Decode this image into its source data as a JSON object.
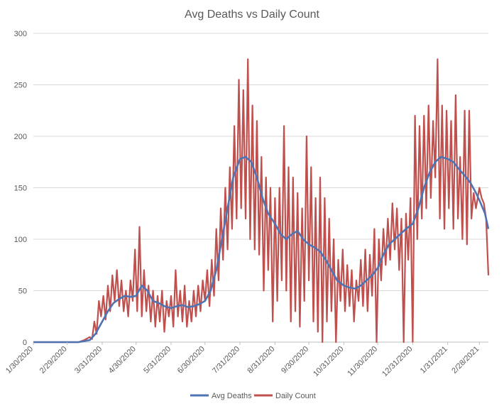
{
  "chart_data": {
    "type": "line",
    "title": "Avg Deaths vs Daily Count",
    "xlabel": "",
    "ylabel": "",
    "ylim": [
      0,
      300
    ],
    "y_ticks": [
      0,
      50,
      100,
      150,
      200,
      250,
      300
    ],
    "x_tick_labels": [
      "1/30/2020",
      "2/29/2020",
      "3/31/2020",
      "4/30/2020",
      "5/31/2020",
      "6/30/2020",
      "7/31/2020",
      "8/31/2020",
      "9/30/2020",
      "10/31/2020",
      "11/30/2020",
      "12/31/2020",
      "1/31/2021",
      "2/28/2021"
    ],
    "grid": "horizontal",
    "legend_position": "bottom",
    "series": [
      {
        "name": "Avg Deaths",
        "color": "#4f74b3",
        "points": [
          [
            "1/30/2020",
            0
          ],
          [
            "3/10/2020",
            0
          ],
          [
            "3/20/2020",
            2
          ],
          [
            "3/25/2020",
            8
          ],
          [
            "3/31/2020",
            20
          ],
          [
            "4/5/2020",
            30
          ],
          [
            "4/10/2020",
            38
          ],
          [
            "4/15/2020",
            42
          ],
          [
            "4/20/2020",
            45
          ],
          [
            "4/25/2020",
            44
          ],
          [
            "4/30/2020",
            45
          ],
          [
            "5/5/2020",
            55
          ],
          [
            "5/10/2020",
            50
          ],
          [
            "5/15/2020",
            40
          ],
          [
            "5/20/2020",
            38
          ],
          [
            "5/25/2020",
            35
          ],
          [
            "5/31/2020",
            33
          ],
          [
            "6/5/2020",
            35
          ],
          [
            "6/10/2020",
            36
          ],
          [
            "6/15/2020",
            34
          ],
          [
            "6/20/2020",
            35
          ],
          [
            "6/25/2020",
            37
          ],
          [
            "6/30/2020",
            40
          ],
          [
            "7/5/2020",
            50
          ],
          [
            "7/10/2020",
            70
          ],
          [
            "7/15/2020",
            100
          ],
          [
            "7/20/2020",
            130
          ],
          [
            "7/25/2020",
            160
          ],
          [
            "7/31/2020",
            178
          ],
          [
            "8/5/2020",
            180
          ],
          [
            "8/10/2020",
            175
          ],
          [
            "8/15/2020",
            160
          ],
          [
            "8/20/2020",
            140
          ],
          [
            "8/25/2020",
            125
          ],
          [
            "8/31/2020",
            115
          ],
          [
            "9/5/2020",
            105
          ],
          [
            "9/10/2020",
            100
          ],
          [
            "9/15/2020",
            105
          ],
          [
            "9/20/2020",
            108
          ],
          [
            "9/25/2020",
            100
          ],
          [
            "9/30/2020",
            95
          ],
          [
            "10/5/2020",
            92
          ],
          [
            "10/10/2020",
            88
          ],
          [
            "10/15/2020",
            80
          ],
          [
            "10/20/2020",
            70
          ],
          [
            "10/25/2020",
            60
          ],
          [
            "10/31/2020",
            55
          ],
          [
            "11/5/2020",
            53
          ],
          [
            "11/10/2020",
            52
          ],
          [
            "11/15/2020",
            55
          ],
          [
            "11/20/2020",
            60
          ],
          [
            "11/25/2020",
            65
          ],
          [
            "11/30/2020",
            72
          ],
          [
            "12/5/2020",
            85
          ],
          [
            "12/10/2020",
            95
          ],
          [
            "12/15/2020",
            100
          ],
          [
            "12/20/2020",
            105
          ],
          [
            "12/25/2020",
            110
          ],
          [
            "12/31/2020",
            115
          ],
          [
            "1/5/2021",
            130
          ],
          [
            "1/10/2021",
            150
          ],
          [
            "1/15/2021",
            165
          ],
          [
            "1/20/2021",
            175
          ],
          [
            "1/25/2021",
            180
          ],
          [
            "1/31/2021",
            178
          ],
          [
            "2/5/2021",
            175
          ],
          [
            "2/10/2021",
            168
          ],
          [
            "2/15/2021",
            162
          ],
          [
            "2/20/2021",
            155
          ],
          [
            "2/25/2021",
            145
          ],
          [
            "2/28/2021",
            138
          ],
          [
            "3/5/2021",
            125
          ],
          [
            "3/8/2021",
            110
          ]
        ]
      },
      {
        "name": "Daily Count",
        "color": "#c0504d",
        "points": [
          [
            "1/30/2020",
            0
          ],
          [
            "3/10/2020",
            0
          ],
          [
            "3/15/2020",
            2
          ],
          [
            "3/20/2020",
            5
          ],
          [
            "3/22/2020",
            3
          ],
          [
            "3/24/2020",
            20
          ],
          [
            "3/26/2020",
            8
          ],
          [
            "3/28/2020",
            40
          ],
          [
            "3/30/2020",
            25
          ],
          [
            "4/1/2020",
            45
          ],
          [
            "4/3/2020",
            22
          ],
          [
            "4/5/2020",
            55
          ],
          [
            "4/7/2020",
            30
          ],
          [
            "4/9/2020",
            65
          ],
          [
            "4/11/2020",
            40
          ],
          [
            "4/13/2020",
            70
          ],
          [
            "4/15/2020",
            35
          ],
          [
            "4/17/2020",
            60
          ],
          [
            "4/19/2020",
            30
          ],
          [
            "4/21/2020",
            50
          ],
          [
            "4/23/2020",
            25
          ],
          [
            "4/25/2020",
            60
          ],
          [
            "4/27/2020",
            40
          ],
          [
            "4/29/2020",
            90
          ],
          [
            "5/1/2020",
            30
          ],
          [
            "5/3/2020",
            112
          ],
          [
            "5/5/2020",
            25
          ],
          [
            "5/7/2020",
            70
          ],
          [
            "5/9/2020",
            30
          ],
          [
            "5/11/2020",
            55
          ],
          [
            "5/13/2020",
            20
          ],
          [
            "5/15/2020",
            50
          ],
          [
            "5/17/2020",
            15
          ],
          [
            "5/19/2020",
            45
          ],
          [
            "5/21/2020",
            20
          ],
          [
            "5/23/2020",
            50
          ],
          [
            "5/25/2020",
            10
          ],
          [
            "5/27/2020",
            40
          ],
          [
            "5/29/2020",
            25
          ],
          [
            "5/31/2020",
            45
          ],
          [
            "6/2/2020",
            15
          ],
          [
            "6/4/2020",
            70
          ],
          [
            "6/6/2020",
            25
          ],
          [
            "6/8/2020",
            50
          ],
          [
            "6/10/2020",
            20
          ],
          [
            "6/12/2020",
            55
          ],
          [
            "6/14/2020",
            15
          ],
          [
            "6/16/2020",
            40
          ],
          [
            "6/18/2020",
            20
          ],
          [
            "6/20/2020",
            50
          ],
          [
            "6/22/2020",
            25
          ],
          [
            "6/24/2020",
            55
          ],
          [
            "6/26/2020",
            30
          ],
          [
            "6/28/2020",
            60
          ],
          [
            "6/30/2020",
            40
          ],
          [
            "7/2/2020",
            70
          ],
          [
            "7/4/2020",
            35
          ],
          [
            "7/6/2020",
            80
          ],
          [
            "7/8/2020",
            45
          ],
          [
            "7/10/2020",
            110
          ],
          [
            "7/12/2020",
            60
          ],
          [
            "7/14/2020",
            130
          ],
          [
            "7/16/2020",
            80
          ],
          [
            "7/18/2020",
            150
          ],
          [
            "7/20/2020",
            90
          ],
          [
            "7/22/2020",
            170
          ],
          [
            "7/24/2020",
            110
          ],
          [
            "7/26/2020",
            210
          ],
          [
            "7/28/2020",
            120
          ],
          [
            "7/30/2020",
            255
          ],
          [
            "8/1/2020",
            130
          ],
          [
            "8/3/2020",
            245
          ],
          [
            "8/5/2020",
            120
          ],
          [
            "8/7/2020",
            275
          ],
          [
            "8/9/2020",
            100
          ],
          [
            "8/11/2020",
            230
          ],
          [
            "8/13/2020",
            90
          ],
          [
            "8/15/2020",
            215
          ],
          [
            "8/17/2020",
            85
          ],
          [
            "8/19/2020",
            180
          ],
          [
            "8/21/2020",
            50
          ],
          [
            "8/23/2020",
            160
          ],
          [
            "8/25/2020",
            70
          ],
          [
            "8/27/2020",
            150
          ],
          [
            "8/29/2020",
            20
          ],
          [
            "8/31/2020",
            140
          ],
          [
            "9/2/2020",
            40
          ],
          [
            "9/4/2020",
            150
          ],
          [
            "9/6/2020",
            60
          ],
          [
            "9/8/2020",
            210
          ],
          [
            "9/10/2020",
            50
          ],
          [
            "9/12/2020",
            170
          ],
          [
            "9/14/2020",
            20
          ],
          [
            "9/16/2020",
            160
          ],
          [
            "9/18/2020",
            30
          ],
          [
            "9/20/2020",
            145
          ],
          [
            "9/22/2020",
            15
          ],
          [
            "9/24/2020",
            130
          ],
          [
            "9/26/2020",
            40
          ],
          [
            "9/28/2020",
            200
          ],
          [
            "9/30/2020",
            60
          ],
          [
            "10/2/2020",
            170
          ],
          [
            "10/4/2020",
            20
          ],
          [
            "10/6/2020",
            140
          ],
          [
            "10/8/2020",
            10
          ],
          [
            "10/10/2020",
            160
          ],
          [
            "10/12/2020",
            0
          ],
          [
            "10/14/2020",
            140
          ],
          [
            "10/16/2020",
            20
          ],
          [
            "10/18/2020",
            120
          ],
          [
            "10/20/2020",
            30
          ],
          [
            "10/22/2020",
            100
          ],
          [
            "10/24/2020",
            0
          ],
          [
            "10/26/2020",
            80
          ],
          [
            "10/28/2020",
            40
          ],
          [
            "10/30/2020",
            90
          ],
          [
            "11/1/2020",
            30
          ],
          [
            "11/3/2020",
            75
          ],
          [
            "11/5/2020",
            35
          ],
          [
            "11/7/2020",
            70
          ],
          [
            "11/9/2020",
            20
          ],
          [
            "11/11/2020",
            60
          ],
          [
            "11/13/2020",
            40
          ],
          [
            "11/15/2020",
            80
          ],
          [
            "11/17/2020",
            35
          ],
          [
            "11/19/2020",
            90
          ],
          [
            "11/21/2020",
            30
          ],
          [
            "11/23/2020",
            85
          ],
          [
            "11/25/2020",
            45
          ],
          [
            "11/27/2020",
            110
          ],
          [
            "11/29/2020",
            0
          ],
          [
            "12/1/2020",
            100
          ],
          [
            "12/3/2020",
            60
          ],
          [
            "12/5/2020",
            110
          ],
          [
            "12/7/2020",
            75
          ],
          [
            "12/9/2020",
            120
          ],
          [
            "12/11/2020",
            80
          ],
          [
            "12/13/2020",
            135
          ],
          [
            "12/15/2020",
            90
          ],
          [
            "12/17/2020",
            130
          ],
          [
            "12/19/2020",
            70
          ],
          [
            "12/21/2020",
            120
          ],
          [
            "12/23/2020",
            0
          ],
          [
            "12/25/2020",
            125
          ],
          [
            "12/27/2020",
            80
          ],
          [
            "12/29/2020",
            140
          ],
          [
            "12/31/2020",
            0
          ],
          [
            "1/2/2021",
            220
          ],
          [
            "1/4/2021",
            100
          ],
          [
            "1/6/2021",
            210
          ],
          [
            "1/8/2021",
            120
          ],
          [
            "1/10/2021",
            220
          ],
          [
            "1/12/2021",
            130
          ],
          [
            "1/14/2021",
            230
          ],
          [
            "1/16/2021",
            140
          ],
          [
            "1/18/2021",
            215
          ],
          [
            "1/20/2021",
            160
          ],
          [
            "1/22/2021",
            275
          ],
          [
            "1/24/2021",
            120
          ],
          [
            "1/26/2021",
            230
          ],
          [
            "1/28/2021",
            110
          ],
          [
            "1/30/2021",
            225
          ],
          [
            "2/1/2021",
            130
          ],
          [
            "2/3/2021",
            215
          ],
          [
            "2/5/2021",
            110
          ],
          [
            "2/7/2021",
            240
          ],
          [
            "2/9/2021",
            120
          ],
          [
            "2/11/2021",
            180
          ],
          [
            "2/13/2021",
            100
          ],
          [
            "2/15/2021",
            225
          ],
          [
            "2/17/2021",
            95
          ],
          [
            "2/19/2021",
            225
          ],
          [
            "2/21/2021",
            120
          ],
          [
            "2/23/2021",
            145
          ],
          [
            "2/25/2021",
            130
          ],
          [
            "2/28/2021",
            150
          ],
          [
            "3/2/2021",
            140
          ],
          [
            "3/4/2021",
            135
          ],
          [
            "3/6/2021",
            120
          ],
          [
            "3/8/2021",
            65
          ]
        ]
      }
    ]
  }
}
